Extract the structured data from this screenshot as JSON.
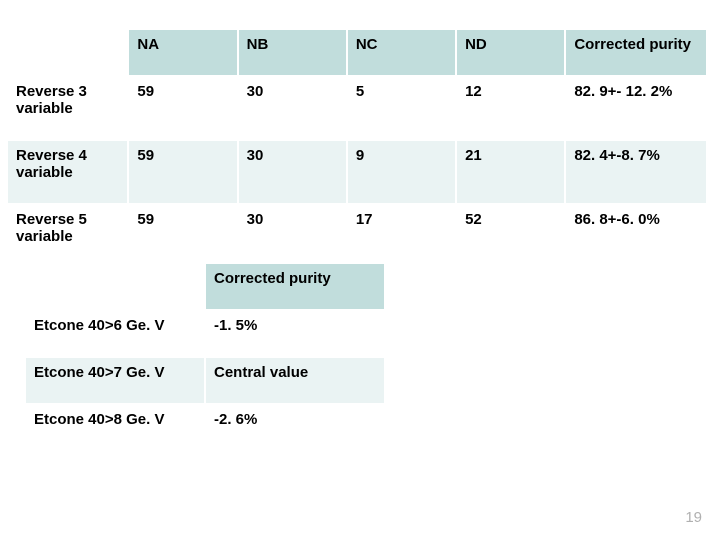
{
  "palette": {
    "header_bg": "#c1dddc",
    "row_alt_bg": "#eaf3f3",
    "row_bg": "#ffffff",
    "border": "#ffffff",
    "text": "#000000",
    "pagenum_color": "#b0b0b0"
  },
  "top_table": {
    "columns": [
      "NA",
      "NB",
      "NC",
      "ND",
      "Corrected purity"
    ],
    "rows": [
      {
        "label": "Reverse 3 variable",
        "na": "59",
        "nb": "30",
        "nc": "5",
        "nd": "12",
        "cp": "82. 9+- 12. 2%"
      },
      {
        "label": "Reverse 4 variable",
        "na": "59",
        "nb": "30",
        "nc": "9",
        "nd": "21",
        "cp": "82. 4+-8. 7%"
      },
      {
        "label": "Reverse 5 variable",
        "na": "59",
        "nb": "30",
        "nc": "17",
        "nd": "52",
        "cp": "86. 8+-6. 0%"
      }
    ]
  },
  "bottom_table": {
    "header": "Corrected purity",
    "rows": [
      {
        "label": "Etcone 40>6 Ge. V",
        "val": "-1. 5%"
      },
      {
        "label": "Etcone 40>7 Ge. V",
        "val": "Central value"
      },
      {
        "label": "Etcone 40>8 Ge. V",
        "val": "-2. 6%"
      }
    ]
  },
  "page_number": "19"
}
